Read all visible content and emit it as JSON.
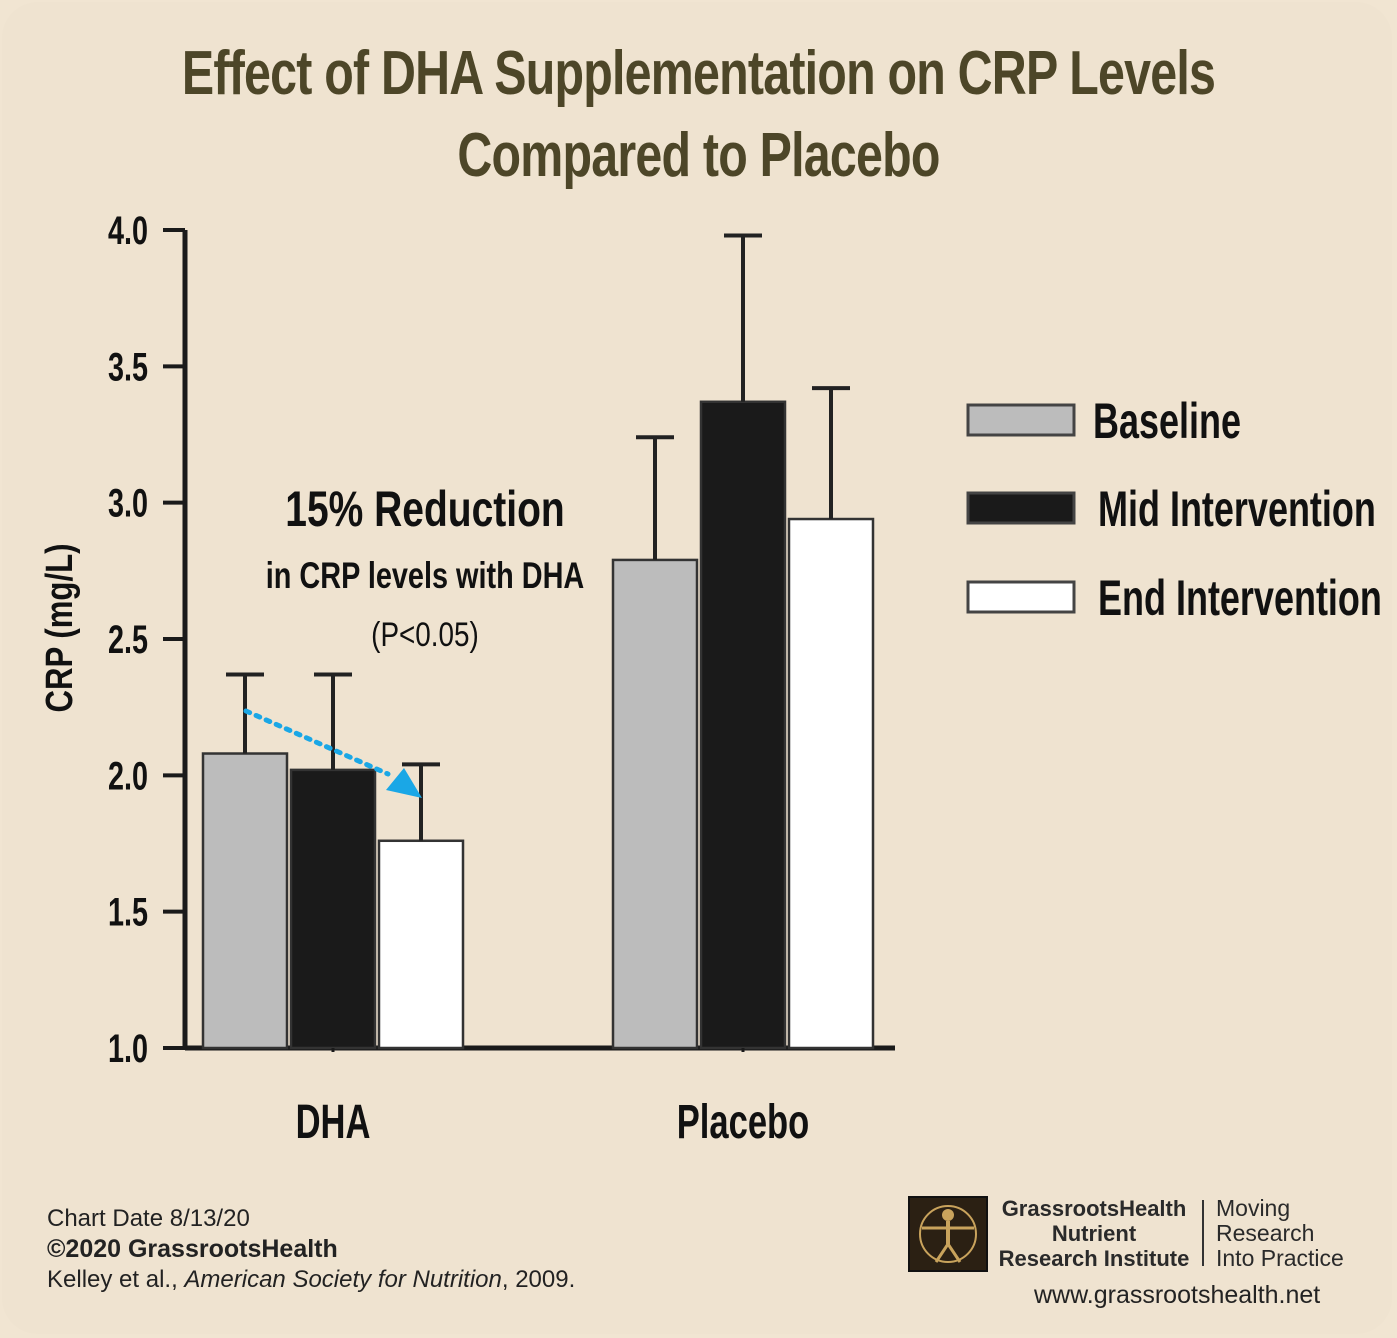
{
  "chart_data": {
    "type": "bar",
    "title": "Effect of DHA Supplementation on CRP Levels",
    "subtitle": "Compared to Placebo",
    "ylabel": "CRP (mg/L)",
    "xlabel": "",
    "ylim": [
      1.0,
      4.0
    ],
    "yticks": [
      "1.0",
      "1.5",
      "2.0",
      "2.5",
      "3.0",
      "3.5",
      "4.0"
    ],
    "grid": false,
    "legend_position": "right",
    "categories": [
      "DHA",
      "Placebo"
    ],
    "series": [
      {
        "name": "Baseline",
        "color": "#bcbcbc",
        "values": [
          2.08,
          2.79
        ],
        "error_upper": [
          2.37,
          3.24
        ]
      },
      {
        "name": "Mid Intervention",
        "color": "#1a1a1a",
        "values": [
          2.02,
          3.37
        ],
        "error_upper": [
          2.37,
          3.98
        ]
      },
      {
        "name": "End Intervention",
        "color": "#ffffff",
        "values": [
          1.76,
          2.94
        ],
        "error_upper": [
          2.04,
          3.42
        ]
      }
    ],
    "annotation": {
      "headline": "15% Reduction",
      "line2": "in CRP levels with DHA",
      "line3": "(P<0.05)",
      "arrow_color": "#1aa7e6"
    }
  },
  "footer": {
    "chart_date": "Chart Date 8/13/20",
    "copyright": "©2020 GrassrootsHealth",
    "citation_authors": "Kelley et al., ",
    "citation_journal": "American Society for Nutrition",
    "citation_year": ", 2009."
  },
  "branding": {
    "org_line1": "GrassrootsHealth",
    "org_line2": "Nutrient",
    "org_line3": "Research Institute",
    "tagline1": "Moving",
    "tagline2": "Research",
    "tagline3": "Into Practice",
    "website": "www.grassrootshealth.net"
  }
}
